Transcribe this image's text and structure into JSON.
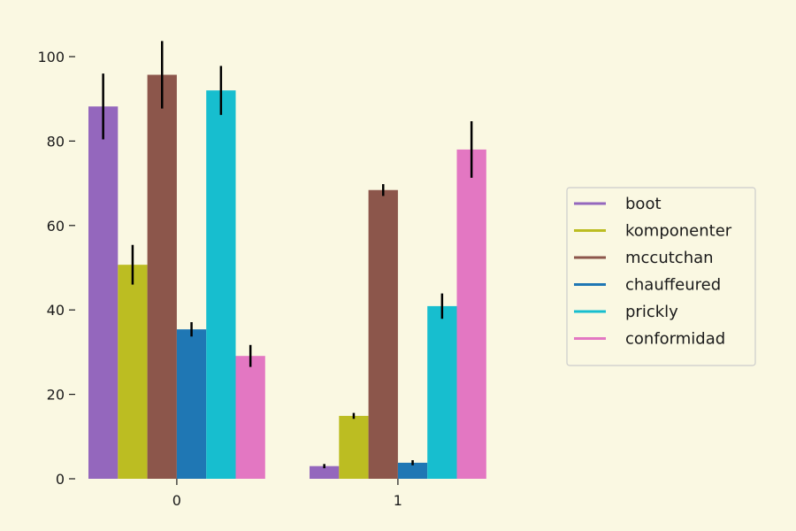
{
  "chart_data": {
    "type": "bar",
    "categories": [
      "0",
      "1"
    ],
    "series": [
      {
        "name": "boot",
        "color": "#9467bd",
        "values": [
          88.2,
          3.0
        ],
        "errors": [
          7.8,
          0.5
        ]
      },
      {
        "name": "komponenter",
        "color": "#bcbd22",
        "values": [
          50.7,
          14.9
        ],
        "errors": [
          4.7,
          0.7
        ]
      },
      {
        "name": "mccutchan",
        "color": "#8c564b",
        "values": [
          95.7,
          68.4
        ],
        "errors": [
          8.0,
          1.4
        ]
      },
      {
        "name": "chauffeured",
        "color": "#1f77b4",
        "values": [
          35.4,
          3.8
        ],
        "errors": [
          1.7,
          0.6
        ]
      },
      {
        "name": "prickly",
        "color": "#17becf",
        "values": [
          92.0,
          40.9
        ],
        "errors": [
          5.8,
          3.0
        ]
      },
      {
        "name": "conformidad",
        "color": "#e377c2",
        "values": [
          29.1,
          78.0
        ],
        "errors": [
          2.6,
          6.7
        ]
      }
    ],
    "ylim": [
      0,
      105
    ],
    "yticks": [
      0,
      20,
      40,
      60,
      80,
      100
    ],
    "grid": false,
    "legend_position": "right",
    "xlabel": "",
    "ylabel": "",
    "title": ""
  }
}
